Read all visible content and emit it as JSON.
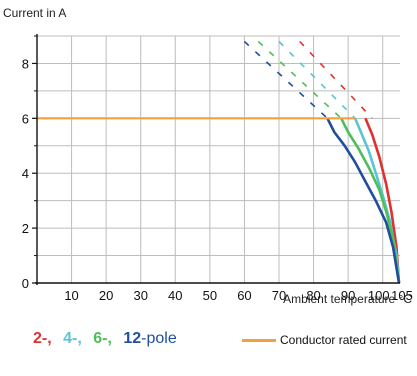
{
  "chart_data": {
    "type": "line",
    "ylabel": "Current in A",
    "xlabel": "Ambient temperature °C",
    "xlim": [
      0,
      105
    ],
    "ylim": [
      0,
      9
    ],
    "xticks": [
      10,
      20,
      30,
      40,
      50,
      60,
      70,
      80,
      90,
      100,
      105
    ],
    "yticks": [
      0,
      2,
      4,
      6,
      8
    ],
    "grid": true,
    "series": [
      {
        "name": "2-",
        "color": "#e03030",
        "solid": [
          [
            95,
            6.0
          ],
          [
            97,
            5.4
          ],
          [
            99,
            4.6
          ],
          [
            101,
            3.6
          ],
          [
            102.5,
            2.6
          ],
          [
            104,
            1.3
          ],
          [
            104.7,
            0
          ]
        ],
        "dashed": [
          [
            76,
            8.8
          ],
          [
            97,
            6.0
          ]
        ]
      },
      {
        "name": "4-",
        "color": "#5bc4d3",
        "solid": [
          [
            92,
            6.0
          ],
          [
            94,
            5.4
          ],
          [
            96,
            4.8
          ],
          [
            98,
            4.0
          ],
          [
            100,
            3.2
          ],
          [
            102,
            2.3
          ],
          [
            104,
            1.0
          ],
          [
            104.7,
            0
          ]
        ],
        "dashed": [
          [
            70,
            8.8
          ],
          [
            92,
            6.0
          ]
        ]
      },
      {
        "name": "6-",
        "color": "#4cbf5a",
        "solid": [
          [
            88,
            6.0
          ],
          [
            90,
            5.5
          ],
          [
            93,
            4.9
          ],
          [
            96,
            4.2
          ],
          [
            99,
            3.4
          ],
          [
            101,
            2.6
          ],
          [
            103,
            1.6
          ],
          [
            104.7,
            0
          ]
        ],
        "dashed": [
          [
            64,
            8.8
          ],
          [
            88,
            6.0
          ]
        ]
      },
      {
        "name": "12-",
        "color": "#1f4e9c",
        "solid": [
          [
            84,
            6.0
          ],
          [
            86,
            5.5
          ],
          [
            89,
            5.0
          ],
          [
            92,
            4.4
          ],
          [
            95,
            3.7
          ],
          [
            98,
            3.0
          ],
          [
            101,
            2.2
          ],
          [
            103,
            1.3
          ],
          [
            104.7,
            0
          ]
        ],
        "dashed": [
          [
            60,
            8.8
          ],
          [
            84,
            6.0
          ]
        ]
      },
      {
        "name": "Conductor rated current",
        "color": "#f5a03c",
        "solid": [
          [
            0,
            6.0
          ],
          [
            92,
            6.0
          ]
        ]
      }
    ]
  },
  "legend": {
    "poles": [
      {
        "label": "2-,",
        "color": "#e03030"
      },
      {
        "label": "4-,",
        "color": "#5bc4d3"
      },
      {
        "label": "6-,",
        "color": "#4cbf5a"
      },
      {
        "label": "12",
        "color": "#1f4e9c"
      }
    ],
    "pole_suffix": "-pole",
    "rated_label": "Conductor rated current",
    "rated_color": "#f5a03c"
  }
}
